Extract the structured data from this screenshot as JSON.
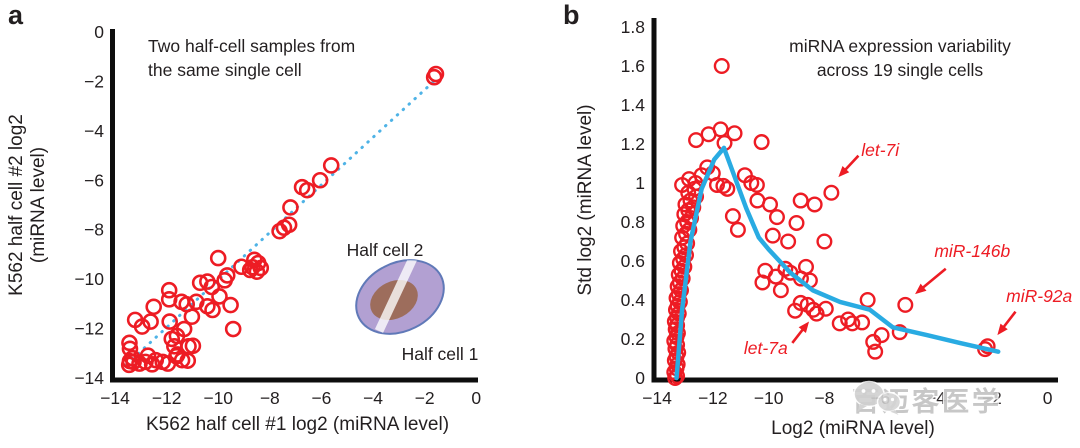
{
  "watermark": {
    "text": "百迈客医学"
  },
  "colors": {
    "point_red": "#ed1c24",
    "annotation_red": "#ed1c24",
    "trend_blue": "#29abe2",
    "dotted_blue": "#4fb3e6",
    "axis_black": "#0e0e0e",
    "text_black": "#231f20",
    "inset_fill": "#b2a0d2",
    "inset_stroke": "#6079b8",
    "inset_nucleus": "#9c6a55",
    "watermark_gray": "#c3c3c3"
  },
  "chart_data": [
    {
      "type": "scatter",
      "panel_label": "a",
      "title": "Two half-cell samples from the same single cell",
      "title_lines": [
        "Two half-cell samples from",
        "the same single cell"
      ],
      "xlabel": "K562 half cell #1 log2 (miRNA level)",
      "ylabel": "K562 half cell #2 log2 (miRNA level)",
      "ylabel_lines": [
        "K562 half cell #2 log2",
        "(miRNA level)"
      ],
      "xlim": [
        -14,
        0
      ],
      "ylim": [
        -14,
        0
      ],
      "grid": false,
      "x_ticks": [
        {
          "v": -14,
          "label": "−14"
        },
        {
          "v": -12,
          "label": "−12"
        },
        {
          "v": -10,
          "label": "−10"
        },
        {
          "v": -8,
          "label": "−8"
        },
        {
          "v": -6,
          "label": "−6"
        },
        {
          "v": -4,
          "label": "−4"
        },
        {
          "v": -2,
          "label": "−2"
        },
        {
          "v": 0,
          "label": "0"
        }
      ],
      "y_ticks": [
        {
          "v": 0,
          "label": "0"
        },
        {
          "v": -2,
          "label": "−2"
        },
        {
          "v": -4,
          "label": "−4"
        },
        {
          "v": -6,
          "label": "−6"
        },
        {
          "v": -8,
          "label": "−8"
        },
        {
          "v": -10,
          "label": "−10"
        },
        {
          "v": -12,
          "label": "−12"
        },
        {
          "v": -14,
          "label": "−14"
        }
      ],
      "identity_line": {
        "style": "dotted",
        "from": [
          -13.55,
          -13.45
        ],
        "to": [
          -1.52,
          -1.88
        ]
      },
      "inset": {
        "top_label": "Half cell 2",
        "bottom_label": "Half cell 1"
      },
      "points": [
        [
          -13.42,
          -13.32
        ],
        [
          -13.45,
          -13.47
        ],
        [
          -13.28,
          -13.35
        ],
        [
          -13.32,
          -13.2
        ],
        [
          -13.05,
          -13.42
        ],
        [
          -12.82,
          -13.35
        ],
        [
          -12.56,
          -13.45
        ],
        [
          -12.42,
          -13.28
        ],
        [
          -12.15,
          -13.35
        ],
        [
          -11.95,
          -13.42
        ],
        [
          -11.62,
          -13.12
        ],
        [
          -11.4,
          -13.28
        ],
        [
          -11.18,
          -13.3
        ],
        [
          -13.42,
          -12.82
        ],
        [
          -13.44,
          -12.58
        ],
        [
          -12.72,
          -13.1
        ],
        [
          -11.7,
          -12.72
        ],
        [
          -11.15,
          -12.72
        ],
        [
          -10.98,
          -12.7
        ],
        [
          -11.58,
          -13.05
        ],
        [
          -13.22,
          -11.65
        ],
        [
          -12.95,
          -11.92
        ],
        [
          -12.62,
          -11.72
        ],
        [
          -12.5,
          -11.12
        ],
        [
          -11.9,
          -10.45
        ],
        [
          -11.9,
          -10.82
        ],
        [
          -11.88,
          -11.72
        ],
        [
          -11.8,
          -12.42
        ],
        [
          -11.6,
          -12.3
        ],
        [
          -11.32,
          -12.02
        ],
        [
          -11.42,
          -10.92
        ],
        [
          -11.22,
          -11.02
        ],
        [
          -10.85,
          -10.92
        ],
        [
          -11.02,
          -11.52
        ],
        [
          -10.42,
          -11.1
        ],
        [
          -10.22,
          -11.25
        ],
        [
          -9.52,
          -11.05
        ],
        [
          -9.42,
          -12.02
        ],
        [
          -10.7,
          -10.15
        ],
        [
          -10.42,
          -10.1
        ],
        [
          -10.25,
          -10.32
        ],
        [
          -9.95,
          -10.7
        ],
        [
          -9.75,
          -10.05
        ],
        [
          -10.0,
          -9.15
        ],
        [
          -9.65,
          -9.85
        ],
        [
          -9.1,
          -9.5
        ],
        [
          -8.6,
          -9.22
        ],
        [
          -8.45,
          -9.35
        ],
        [
          -8.67,
          -9.52
        ],
        [
          -8.35,
          -9.55
        ],
        [
          -8.76,
          -9.63
        ],
        [
          -8.5,
          -9.7
        ],
        [
          -7.45,
          -7.92
        ],
        [
          -7.25,
          -7.8
        ],
        [
          -7.62,
          -8.06
        ],
        [
          -7.2,
          -7.1
        ],
        [
          -6.75,
          -6.28
        ],
        [
          -6.55,
          -6.4
        ],
        [
          -6.05,
          -6.0
        ],
        [
          -5.62,
          -5.4
        ],
        [
          -1.56,
          -1.7
        ],
        [
          -1.63,
          -1.83
        ]
      ]
    },
    {
      "type": "scatter",
      "panel_label": "b",
      "title": "miRNA expression variability across 19 single cells",
      "title_lines": [
        "miRNA expression variability",
        "across 19 single cells"
      ],
      "xlabel": "Log2 (miRNA level)",
      "ylabel": "Std log2 (miRNA level)",
      "xlim": [
        -14,
        0
      ],
      "ylim": [
        0,
        1.8
      ],
      "grid": false,
      "x_ticks": [
        {
          "v": -14,
          "label": "−14"
        },
        {
          "v": -12,
          "label": "−12"
        },
        {
          "v": -10,
          "label": "−10"
        },
        {
          "v": -8,
          "label": "−8"
        },
        {
          "v": -6,
          "label": "−6"
        },
        {
          "v": -4,
          "label": "−4"
        },
        {
          "v": -2,
          "label": "−2"
        },
        {
          "v": 0,
          "label": "0"
        }
      ],
      "y_ticks": [
        {
          "v": 0,
          "label": "0"
        },
        {
          "v": 0.2,
          "label": "0.2"
        },
        {
          "v": 0.4,
          "label": "0.4"
        },
        {
          "v": 0.6,
          "label": "0.6"
        },
        {
          "v": 0.8,
          "label": "0.8"
        },
        {
          "v": 1,
          "label": "1"
        },
        {
          "v": 1.2,
          "label": "1.2"
        },
        {
          "v": 1.4,
          "label": "1.4"
        },
        {
          "v": 1.6,
          "label": "1.6"
        },
        {
          "v": 1.8,
          "label": "1.8"
        }
      ],
      "trend_line": [
        [
          -13.3,
          0.0
        ],
        [
          -13.1,
          0.35
        ],
        [
          -12.8,
          0.7
        ],
        [
          -12.4,
          0.97
        ],
        [
          -11.95,
          1.12
        ],
        [
          -11.6,
          1.18
        ],
        [
          -10.8,
          0.87
        ],
        [
          -10.35,
          0.72
        ],
        [
          -10.0,
          0.66
        ],
        [
          -9.22,
          0.54
        ],
        [
          -8.42,
          0.45
        ],
        [
          -7.44,
          0.39
        ],
        [
          -6.37,
          0.35
        ],
        [
          -5.55,
          0.26
        ],
        [
          -4.33,
          0.22
        ],
        [
          -3.15,
          0.18
        ],
        [
          -1.77,
          0.135
        ]
      ],
      "annotations": [
        {
          "label": "let-7i",
          "text_pos": [
            -6.0,
            1.17
          ],
          "arrow_from": [
            -6.78,
            1.14
          ],
          "arrow_to": [
            -7.5,
            1.03
          ]
        },
        {
          "label": "miR-146b",
          "text_pos": [
            -2.7,
            0.65
          ],
          "arrow_from": [
            -3.65,
            0.56
          ],
          "arrow_to": [
            -4.75,
            0.43
          ]
        },
        {
          "label": "miR-92a",
          "text_pos": [
            -0.3,
            0.42
          ],
          "arrow_from": [
            -1.15,
            0.34
          ],
          "arrow_to": [
            -1.8,
            0.22
          ]
        },
        {
          "label": "let-7a",
          "text_pos": [
            -10.1,
            0.155
          ],
          "arrow_from": [
            -9.15,
            0.18
          ],
          "arrow_to": [
            -8.55,
            0.29
          ]
        }
      ],
      "points": [
        [
          -13.35,
          0.0
        ],
        [
          -13.28,
          0.01
        ],
        [
          -13.38,
          0.03
        ],
        [
          -13.3,
          0.05
        ],
        [
          -13.26,
          0.07
        ],
        [
          -13.36,
          0.09
        ],
        [
          -13.3,
          0.11
        ],
        [
          -13.24,
          0.13
        ],
        [
          -13.34,
          0.15
        ],
        [
          -13.28,
          0.17
        ],
        [
          -13.38,
          0.19
        ],
        [
          -13.3,
          0.21
        ],
        [
          -13.25,
          0.23
        ],
        [
          -13.33,
          0.25
        ],
        [
          -13.28,
          0.27
        ],
        [
          -13.36,
          0.29
        ],
        [
          -13.28,
          0.31
        ],
        [
          -13.22,
          0.33
        ],
        [
          -13.32,
          0.35
        ],
        [
          -13.26,
          0.37
        ],
        [
          -13.18,
          0.39
        ],
        [
          -13.3,
          0.41
        ],
        [
          -13.22,
          0.43
        ],
        [
          -13.14,
          0.45
        ],
        [
          -13.26,
          0.47
        ],
        [
          -13.18,
          0.49
        ],
        [
          -13.08,
          0.51
        ],
        [
          -13.22,
          0.53
        ],
        [
          -13.12,
          0.55
        ],
        [
          -13.02,
          0.57
        ],
        [
          -13.18,
          0.59
        ],
        [
          -13.06,
          0.61
        ],
        [
          -12.96,
          0.63
        ],
        [
          -13.14,
          0.65
        ],
        [
          -13.02,
          0.67
        ],
        [
          -12.92,
          0.69
        ],
        [
          -13.1,
          0.72
        ],
        [
          -12.96,
          0.74
        ],
        [
          -12.84,
          0.76
        ],
        [
          -13.06,
          0.78
        ],
        [
          -12.92,
          0.8
        ],
        [
          -12.78,
          0.82
        ],
        [
          -13.02,
          0.84
        ],
        [
          -12.88,
          0.86
        ],
        [
          -12.7,
          0.875
        ],
        [
          -12.98,
          0.89
        ],
        [
          -12.8,
          0.91
        ],
        [
          -12.6,
          0.93
        ],
        [
          -12.88,
          0.95
        ],
        [
          -12.66,
          0.97
        ],
        [
          -13.1,
          0.99
        ],
        [
          -12.85,
          1.02
        ],
        [
          -12.62,
          1.0
        ],
        [
          -12.4,
          1.04
        ],
        [
          -12.2,
          1.08
        ],
        [
          -12.0,
          1.05
        ],
        [
          -11.85,
          0.99
        ],
        [
          -11.62,
          0.985
        ],
        [
          -11.48,
          0.97
        ],
        [
          -12.6,
          1.22
        ],
        [
          -12.15,
          1.25
        ],
        [
          -11.72,
          1.275
        ],
        [
          -11.22,
          1.255
        ],
        [
          -11.58,
          1.205
        ],
        [
          -10.25,
          1.21
        ],
        [
          -11.68,
          1.6
        ],
        [
          -10.85,
          1.04
        ],
        [
          -10.62,
          1.0
        ],
        [
          -10.42,
          0.99
        ],
        [
          -10.4,
          0.91
        ],
        [
          -9.95,
          0.89
        ],
        [
          -8.85,
          0.91
        ],
        [
          -8.35,
          0.89
        ],
        [
          -11.28,
          0.83
        ],
        [
          -11.1,
          0.76
        ],
        [
          -9.7,
          0.825
        ],
        [
          -7.75,
          0.95
        ],
        [
          -9.85,
          0.73
        ],
        [
          -9.3,
          0.7
        ],
        [
          -8.0,
          0.7
        ],
        [
          -9.0,
          0.795
        ],
        [
          -10.12,
          0.55
        ],
        [
          -10.22,
          0.49
        ],
        [
          -9.74,
          0.52
        ],
        [
          -9.56,
          0.45
        ],
        [
          -9.4,
          0.56
        ],
        [
          -9.22,
          0.54
        ],
        [
          -8.84,
          0.51
        ],
        [
          -8.66,
          0.57
        ],
        [
          -8.52,
          0.5
        ],
        [
          -9.05,
          0.345
        ],
        [
          -8.85,
          0.385
        ],
        [
          -8.6,
          0.375
        ],
        [
          -8.4,
          0.35
        ],
        [
          -8.28,
          0.33
        ],
        [
          -7.95,
          0.355
        ],
        [
          -7.45,
          0.28
        ],
        [
          -7.15,
          0.3
        ],
        [
          -7.0,
          0.28
        ],
        [
          -6.65,
          0.285
        ],
        [
          -6.45,
          0.4
        ],
        [
          -6.25,
          0.185
        ],
        [
          -5.95,
          0.22
        ],
        [
          -6.18,
          0.135
        ],
        [
          -5.3,
          0.235
        ],
        [
          -5.1,
          0.375
        ],
        [
          -2.15,
          0.163
        ],
        [
          -2.24,
          0.148
        ]
      ]
    }
  ]
}
